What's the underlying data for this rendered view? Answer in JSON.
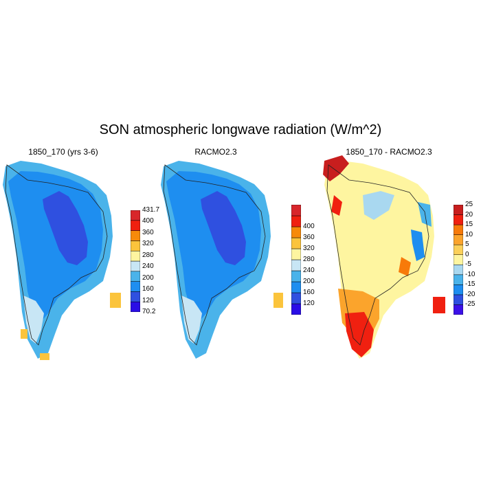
{
  "title": "SON atmospheric longwave radiation (W/m^2)",
  "panels": [
    {
      "id": "model",
      "title": "1850_170 (yrs 3-6)",
      "colorbar": {
        "colors": [
          "#2a0de6",
          "#2f50e0",
          "#1e8ef0",
          "#4ab3ea",
          "#c8e6f5",
          "#fef5a0",
          "#fbc43c",
          "#f78a0a",
          "#f02010",
          "#d8262b"
        ],
        "labels": [
          "70.2",
          "120",
          "160",
          "200",
          "240",
          "280",
          "320",
          "360",
          "400",
          "431.7"
        ]
      }
    },
    {
      "id": "racmo",
      "title": "RACMO2.3",
      "colorbar": {
        "colors": [
          "#2a0de6",
          "#2f50e0",
          "#1e8ef0",
          "#4ab3ea",
          "#c8e6f5",
          "#fef5a0",
          "#fbc43c",
          "#f78a0a",
          "#f02010",
          "#d8262b"
        ],
        "labels": [
          "120",
          "160",
          "200",
          "240",
          "280",
          "320",
          "360",
          "400"
        ]
      }
    },
    {
      "id": "difference",
      "title": "1850_170 - RACMO2.3",
      "colorbar": {
        "colors": [
          "#3c10e8",
          "#2f50e0",
          "#1e8ef0",
          "#4ab3ea",
          "#a9d8f0",
          "#fef5a0",
          "#fbd05a",
          "#fba42c",
          "#f77a0a",
          "#f02010",
          "#c81e1e"
        ],
        "labels": [
          "-25",
          "-20",
          "-15",
          "-10",
          "-5",
          "0",
          "5",
          "10",
          "15",
          "20",
          "25"
        ]
      }
    }
  ]
}
